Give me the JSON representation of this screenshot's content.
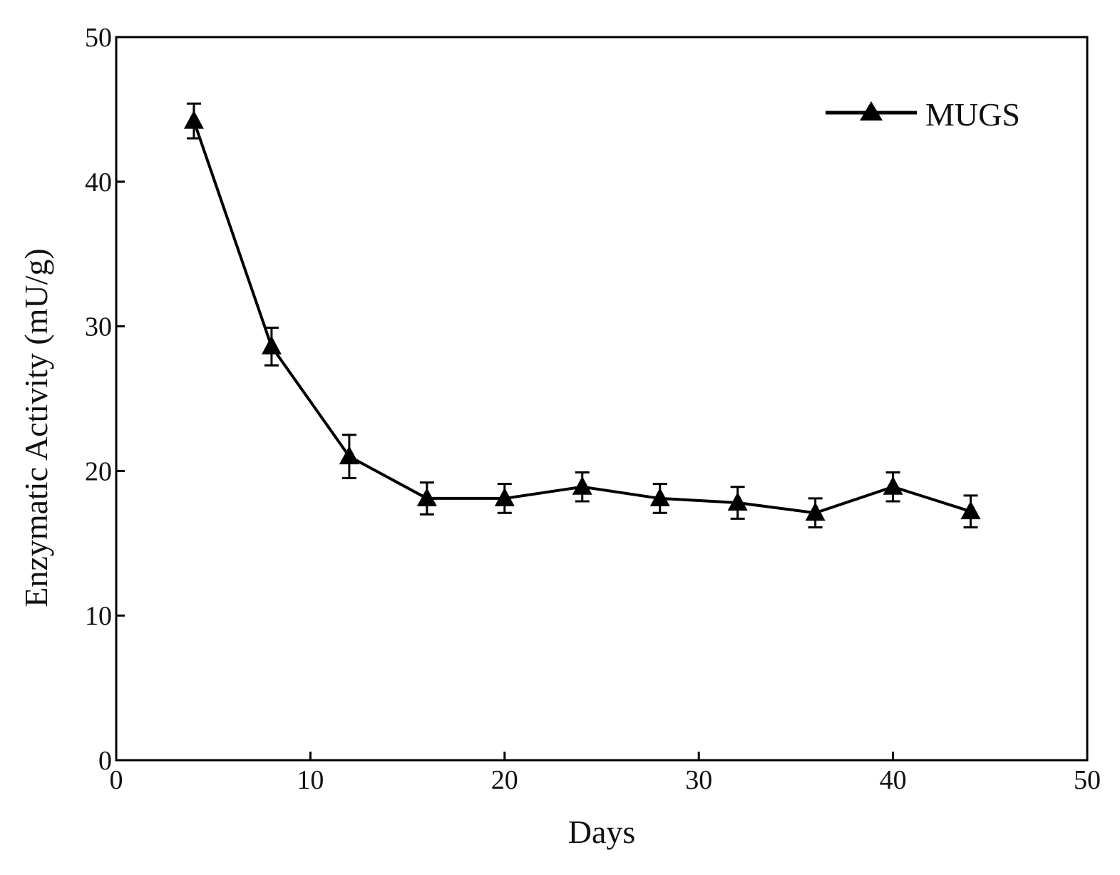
{
  "chart_data": {
    "type": "line",
    "title": "",
    "xlabel": "Days",
    "ylabel": "Enzymatic Activity (mU/g)",
    "xlim": [
      0,
      50
    ],
    "ylim": [
      0,
      50
    ],
    "xticks": [
      "0",
      "10",
      "20",
      "30",
      "40",
      "50"
    ],
    "yticks": [
      "0",
      "10",
      "20",
      "30",
      "40",
      "50"
    ],
    "grid": false,
    "legend_position": "top-right",
    "series": [
      {
        "name": "MUGS",
        "marker": "triangle",
        "color": "#000000",
        "x": [
          4,
          8,
          12,
          16,
          20,
          24,
          28,
          32,
          36,
          40,
          44
        ],
        "values": [
          44.2,
          28.6,
          21.0,
          18.1,
          18.1,
          18.9,
          18.1,
          17.8,
          17.1,
          18.9,
          17.2
        ],
        "error": [
          1.2,
          1.3,
          1.5,
          1.1,
          1.0,
          1.0,
          1.0,
          1.1,
          1.0,
          1.0,
          1.1
        ]
      }
    ]
  }
}
